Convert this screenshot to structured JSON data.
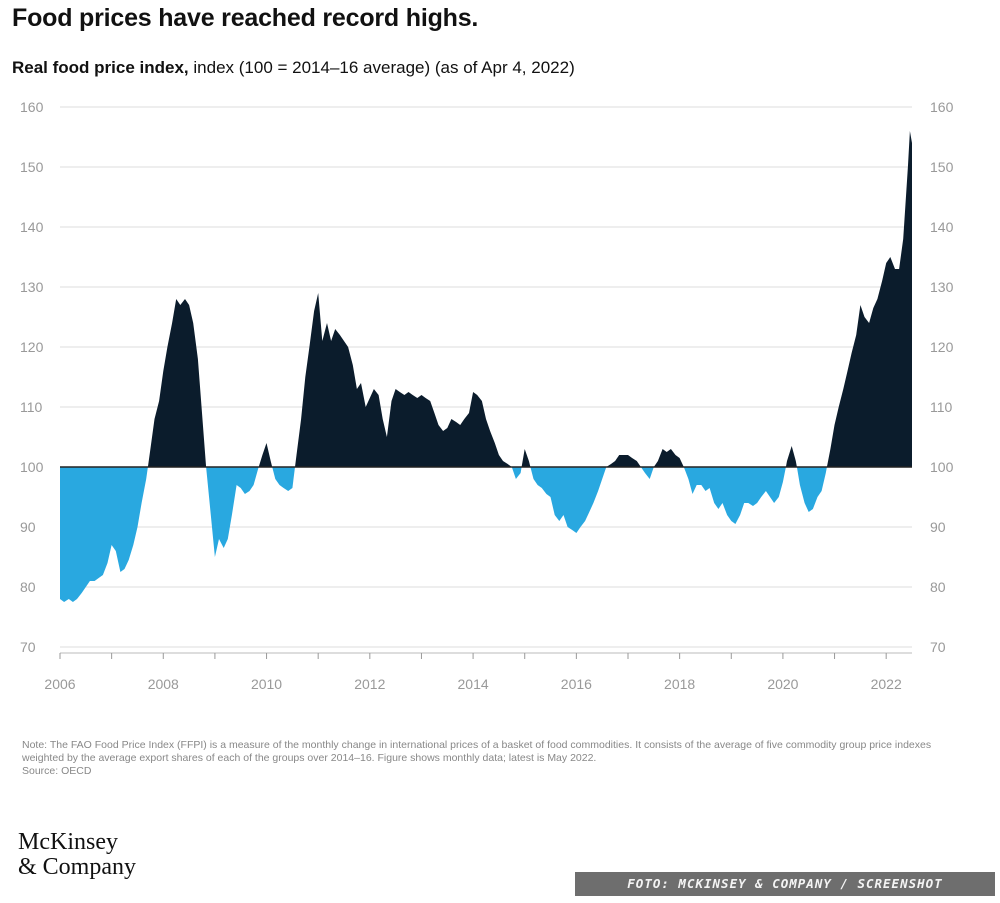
{
  "title": "Food prices have reached record highs.",
  "subtitle_bold": "Real food price index,",
  "subtitle_rest": " index (100 = 2014–16 average) (as of Apr 4, 2022)",
  "note": "Note: The FAO Food Price Index (FFPI) is a measure of the monthly change in international prices of a basket of food commodities. It consists of the average of five commodity group price indexes weighted by the average export shares of each of the groups over 2014–16. Figure shows monthly data; latest is May 2022.",
  "source": "Source: OECD",
  "logo": {
    "line1": "McKinsey",
    "line2": "& Company"
  },
  "credit": "FOTO: MCKINSEY & COMPANY / SCREENSHOT",
  "colors": {
    "above": "#0b1c2c",
    "below": "#29a8e0",
    "axis": "#222222",
    "grid": "#dddddd",
    "tick_text": "#999999"
  },
  "chart_data": {
    "type": "area",
    "title": "Real food price index",
    "ylabel": "index (100 = 2014–16 average)",
    "baseline": 100,
    "ylim": [
      70,
      160
    ],
    "yticks": [
      160,
      150,
      140,
      130,
      120,
      110,
      100,
      90,
      80,
      70
    ],
    "xlim": [
      2006,
      2022.5
    ],
    "xtick_labels": [
      "2006",
      "2008",
      "2010",
      "2012",
      "2014",
      "2016",
      "2018",
      "2020",
      "2022"
    ],
    "series": [
      {
        "name": "Real food price index",
        "points": [
          [
            2006.0,
            78
          ],
          [
            2006.08,
            77.5
          ],
          [
            2006.17,
            78
          ],
          [
            2006.25,
            77.5
          ],
          [
            2006.33,
            78
          ],
          [
            2006.42,
            79
          ],
          [
            2006.5,
            80
          ],
          [
            2006.58,
            81
          ],
          [
            2006.67,
            81
          ],
          [
            2006.75,
            81.5
          ],
          [
            2006.83,
            82
          ],
          [
            2006.92,
            84
          ],
          [
            2007.0,
            87
          ],
          [
            2007.08,
            86
          ],
          [
            2007.17,
            82.5
          ],
          [
            2007.25,
            83
          ],
          [
            2007.33,
            84.5
          ],
          [
            2007.42,
            87
          ],
          [
            2007.5,
            90
          ],
          [
            2007.58,
            94
          ],
          [
            2007.67,
            98
          ],
          [
            2007.75,
            103
          ],
          [
            2007.83,
            108
          ],
          [
            2007.92,
            111
          ],
          [
            2008.0,
            116
          ],
          [
            2008.08,
            120
          ],
          [
            2008.17,
            124
          ],
          [
            2008.25,
            128
          ],
          [
            2008.33,
            127
          ],
          [
            2008.42,
            128
          ],
          [
            2008.5,
            127
          ],
          [
            2008.58,
            124
          ],
          [
            2008.67,
            118
          ],
          [
            2008.75,
            109
          ],
          [
            2008.83,
            100
          ],
          [
            2008.92,
            92
          ],
          [
            2009.0,
            85
          ],
          [
            2009.08,
            88
          ],
          [
            2009.17,
            86.5
          ],
          [
            2009.25,
            88
          ],
          [
            2009.33,
            92
          ],
          [
            2009.42,
            97
          ],
          [
            2009.5,
            96.5
          ],
          [
            2009.58,
            95.5
          ],
          [
            2009.67,
            96
          ],
          [
            2009.75,
            97
          ],
          [
            2009.83,
            99.5
          ],
          [
            2009.92,
            102
          ],
          [
            2010.0,
            104
          ],
          [
            2010.08,
            101
          ],
          [
            2010.17,
            98
          ],
          [
            2010.25,
            97
          ],
          [
            2010.33,
            96.5
          ],
          [
            2010.42,
            96
          ],
          [
            2010.5,
            96.5
          ],
          [
            2010.58,
            102
          ],
          [
            2010.67,
            108
          ],
          [
            2010.75,
            115
          ],
          [
            2010.83,
            120
          ],
          [
            2010.92,
            126
          ],
          [
            2011.0,
            129
          ],
          [
            2011.08,
            121
          ],
          [
            2011.17,
            124
          ],
          [
            2011.25,
            121
          ],
          [
            2011.33,
            123
          ],
          [
            2011.42,
            122
          ],
          [
            2011.5,
            121
          ],
          [
            2011.58,
            120
          ],
          [
            2011.67,
            117
          ],
          [
            2011.75,
            113
          ],
          [
            2011.83,
            114
          ],
          [
            2011.92,
            110
          ],
          [
            2012.0,
            111.5
          ],
          [
            2012.08,
            113
          ],
          [
            2012.17,
            112
          ],
          [
            2012.25,
            108
          ],
          [
            2012.33,
            105
          ],
          [
            2012.42,
            111
          ],
          [
            2012.5,
            113
          ],
          [
            2012.58,
            112.5
          ],
          [
            2012.67,
            112
          ],
          [
            2012.75,
            112.5
          ],
          [
            2012.83,
            112
          ],
          [
            2012.92,
            111.5
          ],
          [
            2013.0,
            112
          ],
          [
            2013.08,
            111.5
          ],
          [
            2013.17,
            111
          ],
          [
            2013.25,
            109
          ],
          [
            2013.33,
            107
          ],
          [
            2013.42,
            106
          ],
          [
            2013.5,
            106.5
          ],
          [
            2013.58,
            108
          ],
          [
            2013.67,
            107.5
          ],
          [
            2013.75,
            107
          ],
          [
            2013.83,
            108
          ],
          [
            2013.92,
            109
          ],
          [
            2014.0,
            112.5
          ],
          [
            2014.08,
            112
          ],
          [
            2014.17,
            111
          ],
          [
            2014.25,
            108
          ],
          [
            2014.33,
            106
          ],
          [
            2014.42,
            104
          ],
          [
            2014.5,
            102
          ],
          [
            2014.58,
            101
          ],
          [
            2014.67,
            100.5
          ],
          [
            2014.75,
            100
          ],
          [
            2014.83,
            98
          ],
          [
            2014.92,
            99
          ],
          [
            2015.0,
            103
          ],
          [
            2015.08,
            101
          ],
          [
            2015.17,
            98
          ],
          [
            2015.25,
            97
          ],
          [
            2015.33,
            96.5
          ],
          [
            2015.42,
            95.5
          ],
          [
            2015.5,
            95
          ],
          [
            2015.58,
            92
          ],
          [
            2015.67,
            91
          ],
          [
            2015.75,
            92
          ],
          [
            2015.83,
            90
          ],
          [
            2015.92,
            89.5
          ],
          [
            2016.0,
            89
          ],
          [
            2016.08,
            90
          ],
          [
            2016.17,
            91
          ],
          [
            2016.25,
            92.5
          ],
          [
            2016.33,
            94
          ],
          [
            2016.42,
            96
          ],
          [
            2016.5,
            98
          ],
          [
            2016.58,
            100
          ],
          [
            2016.67,
            100.5
          ],
          [
            2016.75,
            101
          ],
          [
            2016.83,
            102
          ],
          [
            2016.92,
            102
          ],
          [
            2017.0,
            102
          ],
          [
            2017.08,
            101.5
          ],
          [
            2017.17,
            101
          ],
          [
            2017.25,
            100
          ],
          [
            2017.33,
            99
          ],
          [
            2017.42,
            98
          ],
          [
            2017.5,
            100
          ],
          [
            2017.58,
            101
          ],
          [
            2017.67,
            103
          ],
          [
            2017.75,
            102.5
          ],
          [
            2017.83,
            103
          ],
          [
            2017.92,
            102
          ],
          [
            2018.0,
            101.5
          ],
          [
            2018.08,
            100
          ],
          [
            2018.17,
            98
          ],
          [
            2018.25,
            95.5
          ],
          [
            2018.33,
            97
          ],
          [
            2018.42,
            97
          ],
          [
            2018.5,
            96
          ],
          [
            2018.58,
            96.5
          ],
          [
            2018.67,
            94
          ],
          [
            2018.75,
            93
          ],
          [
            2018.83,
            94
          ],
          [
            2018.92,
            92
          ],
          [
            2019.0,
            91
          ],
          [
            2019.08,
            90.5
          ],
          [
            2019.17,
            92
          ],
          [
            2019.25,
            94
          ],
          [
            2019.33,
            94
          ],
          [
            2019.42,
            93.5
          ],
          [
            2019.5,
            94
          ],
          [
            2019.58,
            95
          ],
          [
            2019.67,
            96
          ],
          [
            2019.75,
            95
          ],
          [
            2019.83,
            94
          ],
          [
            2019.92,
            95
          ],
          [
            2020.0,
            97.5
          ],
          [
            2020.08,
            101
          ],
          [
            2020.17,
            103.5
          ],
          [
            2020.25,
            101
          ],
          [
            2020.33,
            97
          ],
          [
            2020.42,
            94
          ],
          [
            2020.5,
            92.5
          ],
          [
            2020.58,
            93
          ],
          [
            2020.67,
            95
          ],
          [
            2020.75,
            96
          ],
          [
            2020.83,
            99
          ],
          [
            2020.92,
            103
          ],
          [
            2021.0,
            107
          ],
          [
            2021.08,
            110
          ],
          [
            2021.17,
            113
          ],
          [
            2021.25,
            116
          ],
          [
            2021.33,
            119
          ],
          [
            2021.42,
            122
          ],
          [
            2021.5,
            127
          ],
          [
            2021.58,
            125
          ],
          [
            2021.67,
            124
          ],
          [
            2021.75,
            126.5
          ],
          [
            2021.83,
            128
          ],
          [
            2021.92,
            131
          ],
          [
            2022.0,
            134
          ],
          [
            2022.08,
            135
          ],
          [
            2022.17,
            133
          ],
          [
            2022.25,
            133
          ],
          [
            2022.33,
            138
          ],
          [
            2022.42,
            150
          ],
          [
            2022.46,
            156
          ],
          [
            2022.5,
            154
          ]
        ]
      }
    ]
  }
}
